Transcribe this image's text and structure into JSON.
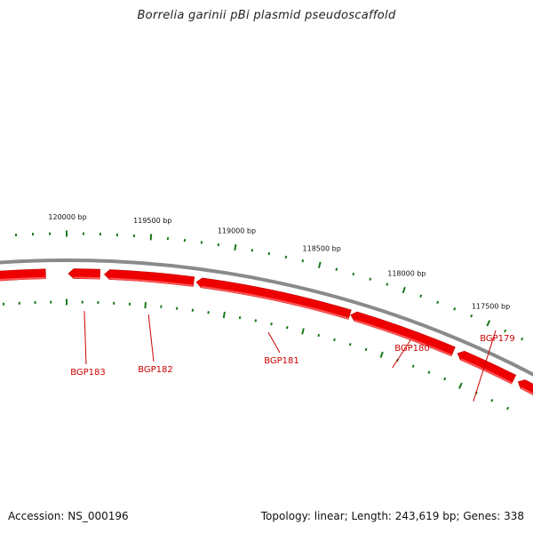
{
  "title": "Borrelia garinii pBi plasmid pseudoscaffold",
  "accession": "Accession: NS_000196",
  "summary": "Topology: linear; Length: 243,619 bp; Genes: 338",
  "colors": {
    "backbone": "#8a8a8a",
    "gene_fill": "#ee0000",
    "gene_highlight": "#ff5555",
    "tick": "#1a7a1a",
    "gene_label": "#cc0000"
  },
  "position_labels": [
    "120000 bp",
    "119500 bp",
    "119000 bp",
    "118500 bp",
    "118000 bp",
    "117500 bp"
  ],
  "gene_labels": [
    "BGP183",
    "BGP182",
    "BGP181",
    "BGP180",
    "BGP179"
  ]
}
